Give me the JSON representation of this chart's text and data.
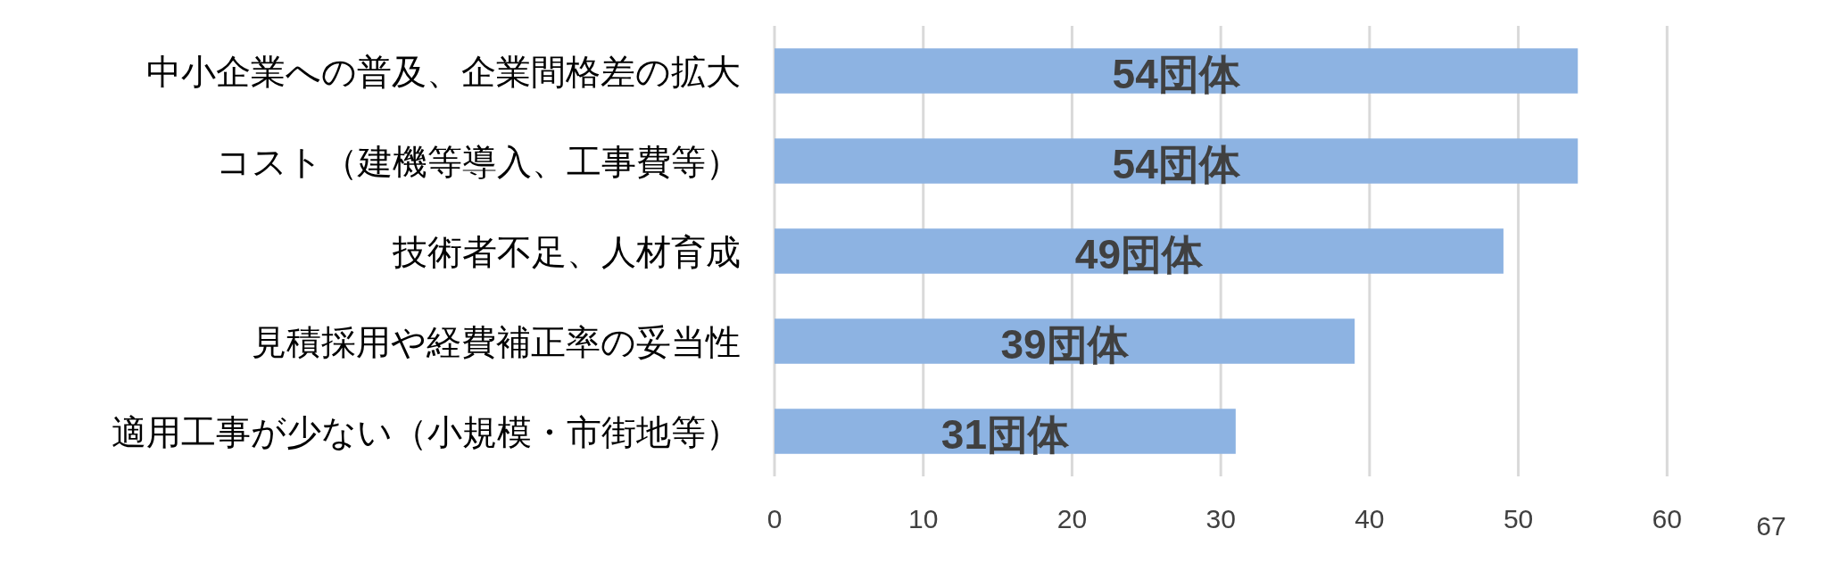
{
  "chart_data": {
    "type": "bar",
    "orientation": "horizontal",
    "categories": [
      "中小企業への普及、企業間格差の拡大",
      "コスト（建機等導入、工事費等）",
      "技術者不足、人材育成",
      "見積採用や経費補正率の妥当性",
      "適用工事が少ない（小規模・市街地等）"
    ],
    "values": [
      54,
      54,
      49,
      39,
      31
    ],
    "value_labels": [
      "54団体",
      "54団体",
      "49団体",
      "39団体",
      "31団体"
    ],
    "color": "#8db3e2",
    "xlim": [
      0,
      67
    ],
    "xticks": [
      0,
      10,
      20,
      30,
      40,
      50,
      60,
      {
        "value": 67,
        "label": "67"
      }
    ],
    "grid": "x"
  }
}
